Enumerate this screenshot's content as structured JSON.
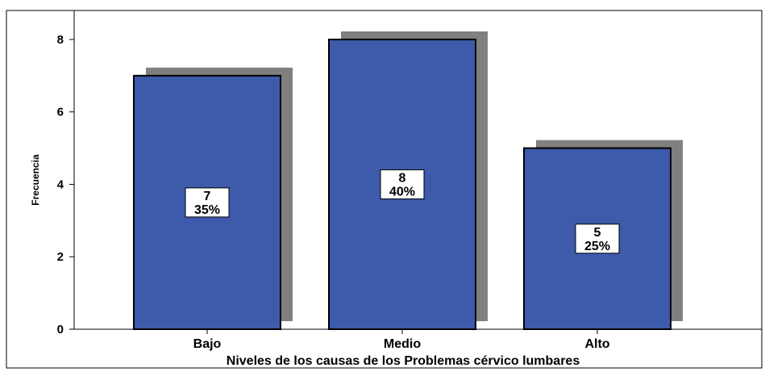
{
  "chart_data": {
    "type": "bar",
    "categories": [
      "Bajo",
      "Medio",
      "Alto"
    ],
    "values": [
      7,
      8,
      5
    ],
    "percent_labels": [
      "35%",
      "40%",
      "25%"
    ],
    "count_labels": [
      "7",
      "8",
      "5"
    ],
    "title": "",
    "xlabel": "Niveles de los causas de los Problemas cérvico lumbares",
    "ylabel": "Frecuencia",
    "ylim": [
      0,
      8.8
    ],
    "yticks": [
      "0",
      "2",
      "4",
      "6",
      "8"
    ],
    "ytick_values": [
      0,
      2,
      4,
      6,
      8
    ],
    "grid": false,
    "legend": "none",
    "colors": {
      "bar": "#3D5AAB",
      "bar_shadow": "#808080",
      "bar_outline": "#000000",
      "plot_border": "#000000",
      "label_box": "#FFFFFF"
    }
  }
}
